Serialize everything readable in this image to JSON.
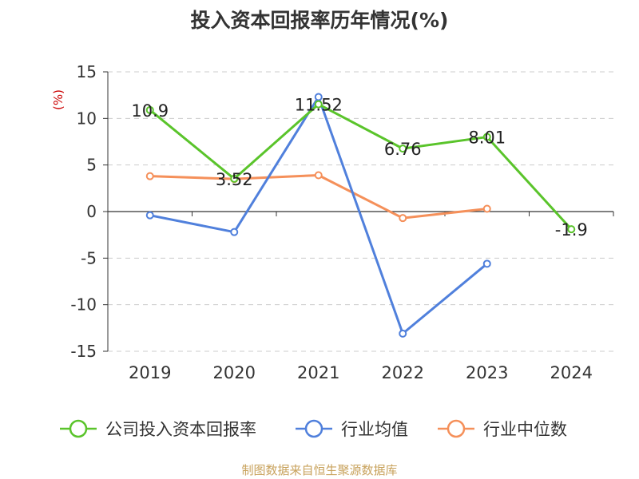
{
  "chart_data": {
    "type": "line",
    "title": "投入资本回报率历年情况(%)",
    "ylabel": "(%)",
    "categories": [
      "2019",
      "2020",
      "2021",
      "2022",
      "2023",
      "2024"
    ],
    "ylim": [
      -15,
      15
    ],
    "yticks": [
      "15",
      "10",
      "5",
      "0",
      "-5",
      "-10",
      "-15"
    ],
    "grid": true,
    "legend_position": "bottom",
    "series": [
      {
        "name": "公司投入资本回报率",
        "color": "#5ac42b",
        "values": [
          10.9,
          3.52,
          11.52,
          6.76,
          8.01,
          -1.9
        ],
        "labels": [
          "10.9",
          "3.52",
          "11.52",
          "6.76",
          "8.01",
          "-1.9"
        ]
      },
      {
        "name": "行业均值",
        "color": "#5080dc",
        "values": [
          -0.4,
          -2.2,
          12.3,
          -13.1,
          -5.6,
          null
        ]
      },
      {
        "name": "行业中位数",
        "color": "#f5905a",
        "values": [
          3.8,
          3.5,
          3.9,
          -0.7,
          0.3,
          null
        ]
      }
    ]
  },
  "source": "制图数据来自恒生聚源数据库"
}
